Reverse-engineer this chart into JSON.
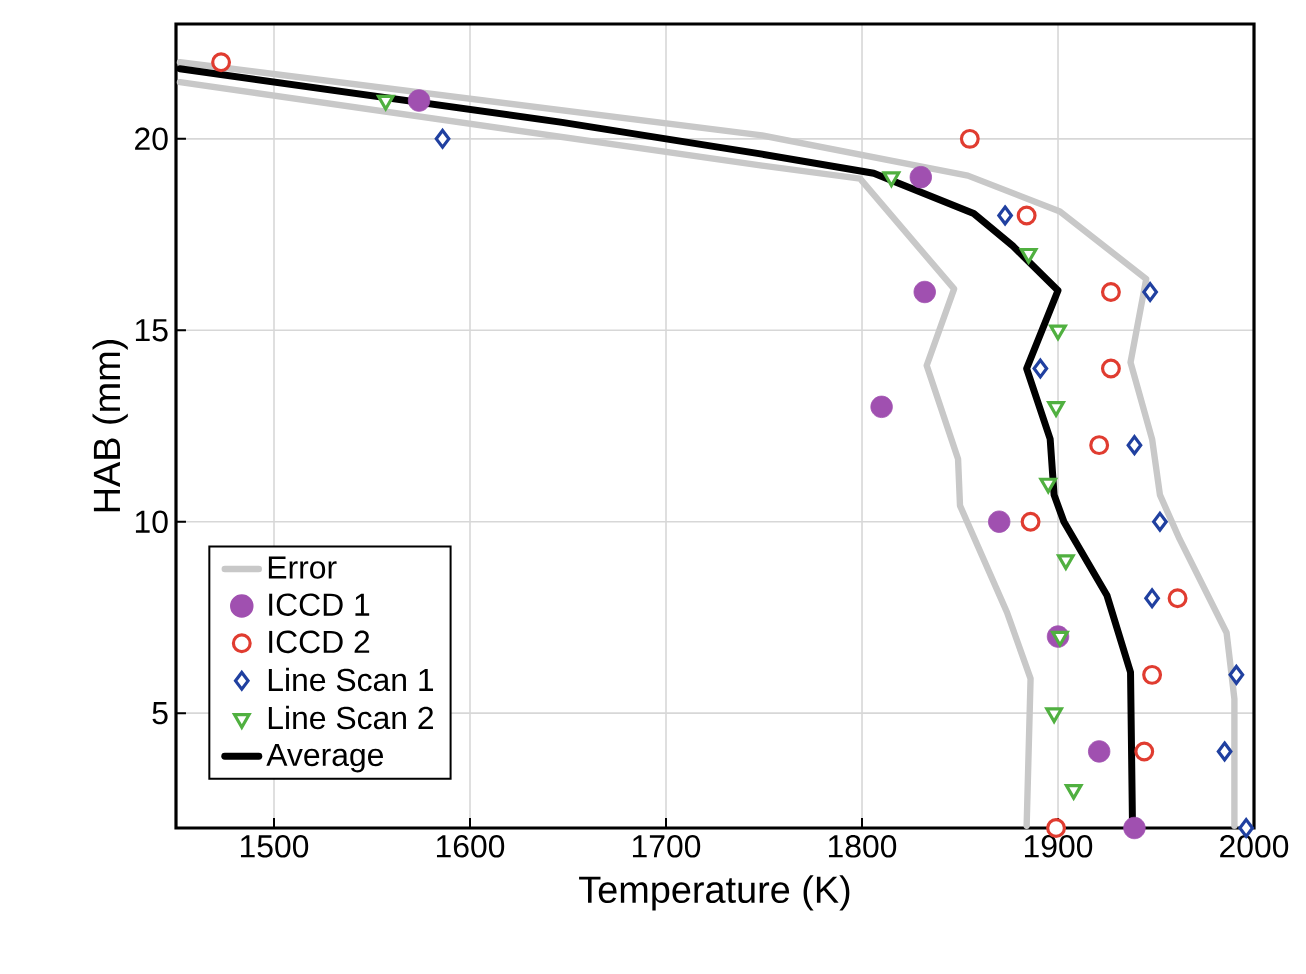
{
  "chart_data": {
    "type": "scatter",
    "xlabel": "Temperature (K)",
    "ylabel": "HAB (mm)",
    "xlim": [
      1450,
      2000
    ],
    "ylim": [
      2,
      23
    ],
    "xticks": [
      1500,
      1600,
      1700,
      1800,
      1900,
      2000
    ],
    "yticks": [
      5,
      10,
      15,
      20
    ],
    "grid": true,
    "legend": "bottom left",
    "series": [
      {
        "name": "Error",
        "type": "line",
        "color": "#c8c8c8",
        "marker": "none",
        "line_style": "solid",
        "x": [
          1452,
          1749,
          1854,
          1901,
          1945,
          1937,
          1948,
          1952,
          1962,
          1986,
          1990,
          1990
        ],
        "values": [
          22.0,
          20.09,
          19.04,
          18.1,
          16.34,
          14.16,
          12.16,
          10.7,
          9.55,
          7.1,
          5.37,
          2.06
        ]
      },
      {
        "type": "line",
        "color": "#c8c8c8",
        "marker": "none",
        "line_style": "solid",
        "x": [
          1452,
          1749,
          1799,
          1847,
          1833,
          1849,
          1850,
          1874,
          1886,
          1884
        ],
        "values": [
          21.48,
          19.3,
          18.96,
          16.08,
          14.08,
          11.64,
          10.42,
          7.63,
          5.9,
          2.06
        ]
      },
      {
        "name": "ICCD 1",
        "color": "#a050b0",
        "marker": "circle",
        "x": [
          1574,
          1830,
          1832,
          1810,
          1870,
          1900,
          1921,
          1939
        ],
        "values": [
          21,
          19,
          16,
          13,
          10,
          7,
          4,
          2
        ]
      },
      {
        "name": "ICCD 2",
        "color": "#e03c30",
        "marker": "circle",
        "x": [
          1473,
          1855,
          1884,
          1927,
          1927,
          1921,
          1886,
          1961,
          1948,
          1944,
          1899
        ],
        "values": [
          22,
          20,
          18,
          16,
          14,
          12,
          10,
          8,
          6,
          4,
          2
        ]
      },
      {
        "name": "Line Scan 1",
        "color": "#2040a0",
        "marker": "diamond",
        "x": [
          1586,
          1873,
          1947,
          1891,
          1939,
          1952,
          1948,
          1991,
          1985,
          1996
        ],
        "values": [
          20,
          18,
          16,
          14,
          12,
          10,
          8,
          6,
          4,
          2
        ]
      },
      {
        "name": "Line Scan 2",
        "color": "#50b040",
        "marker": "triangle",
        "x": [
          1557,
          1815,
          1885,
          1900,
          1899,
          1895,
          1904,
          1901,
          1898,
          1908
        ],
        "values": [
          21,
          19,
          17,
          15,
          13,
          11,
          9,
          7,
          5,
          3
        ]
      },
      {
        "name": "Average",
        "type": "line",
        "color": "#000000",
        "marker": "none",
        "line_style": "solid",
        "x": [
          1452,
          1647,
          1749,
          1806,
          1857,
          1877,
          1900,
          1884,
          1896,
          1898,
          1903,
          1925,
          1937,
          1938
        ],
        "values": [
          21.83,
          20.43,
          19.6,
          19.1,
          18.05,
          17.2,
          16.04,
          14.0,
          12.16,
          10.7,
          10.0,
          8.07,
          6.07,
          2.06
        ]
      }
    ]
  }
}
